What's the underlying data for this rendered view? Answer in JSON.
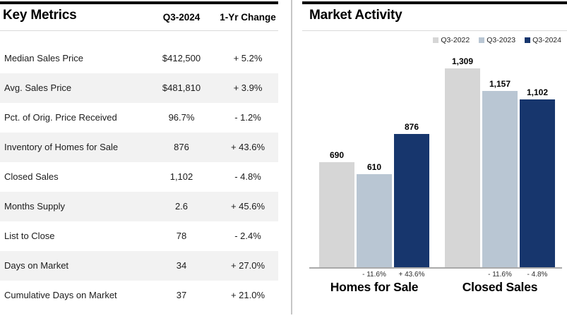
{
  "key_metrics": {
    "title": "Key Metrics",
    "col_period": "Q3-2024",
    "col_change": "1-Yr Change",
    "rows": [
      {
        "label": "Median Sales Price",
        "value": "$412,500",
        "change": "+ 5.2%"
      },
      {
        "label": "Avg. Sales Price",
        "value": "$481,810",
        "change": "+ 3.9%"
      },
      {
        "label": "Pct. of Orig. Price Received",
        "value": "96.7%",
        "change": "- 1.2%"
      },
      {
        "label": "Inventory of Homes for Sale",
        "value": "876",
        "change": "+ 43.6%"
      },
      {
        "label": "Closed Sales",
        "value": "1,102",
        "change": "- 4.8%"
      },
      {
        "label": "Months Supply",
        "value": "2.6",
        "change": "+ 45.6%"
      },
      {
        "label": "List to Close",
        "value": "78",
        "change": "- 2.4%"
      },
      {
        "label": "Days on Market",
        "value": "34",
        "change": "+ 27.0%"
      },
      {
        "label": "Cumulative Days on Market",
        "value": "37",
        "change": "+ 21.0%"
      }
    ]
  },
  "market_activity": {
    "title": "Market Activity",
    "chart_data": {
      "type": "bar",
      "title": "Market Activity",
      "categories": [
        "Homes for Sale",
        "Closed Sales"
      ],
      "series": [
        {
          "name": "Q3-2022",
          "color": "#d6d6d6",
          "values": [
            690,
            1309
          ]
        },
        {
          "name": "Q3-2023",
          "color": "#b9c6d3",
          "values": [
            610,
            1157
          ]
        },
        {
          "name": "Q3-2024",
          "color": "#17366d",
          "values": [
            876,
            1102
          ]
        }
      ],
      "value_labels": [
        [
          "690",
          "1,309"
        ],
        [
          "610",
          "1,157"
        ],
        [
          "876",
          "1,102"
        ]
      ],
      "pct_labels": [
        [
          "",
          ""
        ],
        [
          "- 11.6%",
          "- 11.6%"
        ],
        [
          "+ 43.6%",
          "- 4.8%"
        ]
      ],
      "ylim": [
        0,
        1400
      ],
      "grid": false,
      "legend_position": "top-right"
    }
  },
  "colors": {
    "accent_navy": "#17366d",
    "bar_gray": "#d6d6d6",
    "bar_bluegray": "#b9c6d3",
    "row_stripe": "#f2f2f2",
    "top_rule": "#000000",
    "divider": "#c6c6c6",
    "axis_baseline": "#a9a9a9"
  }
}
